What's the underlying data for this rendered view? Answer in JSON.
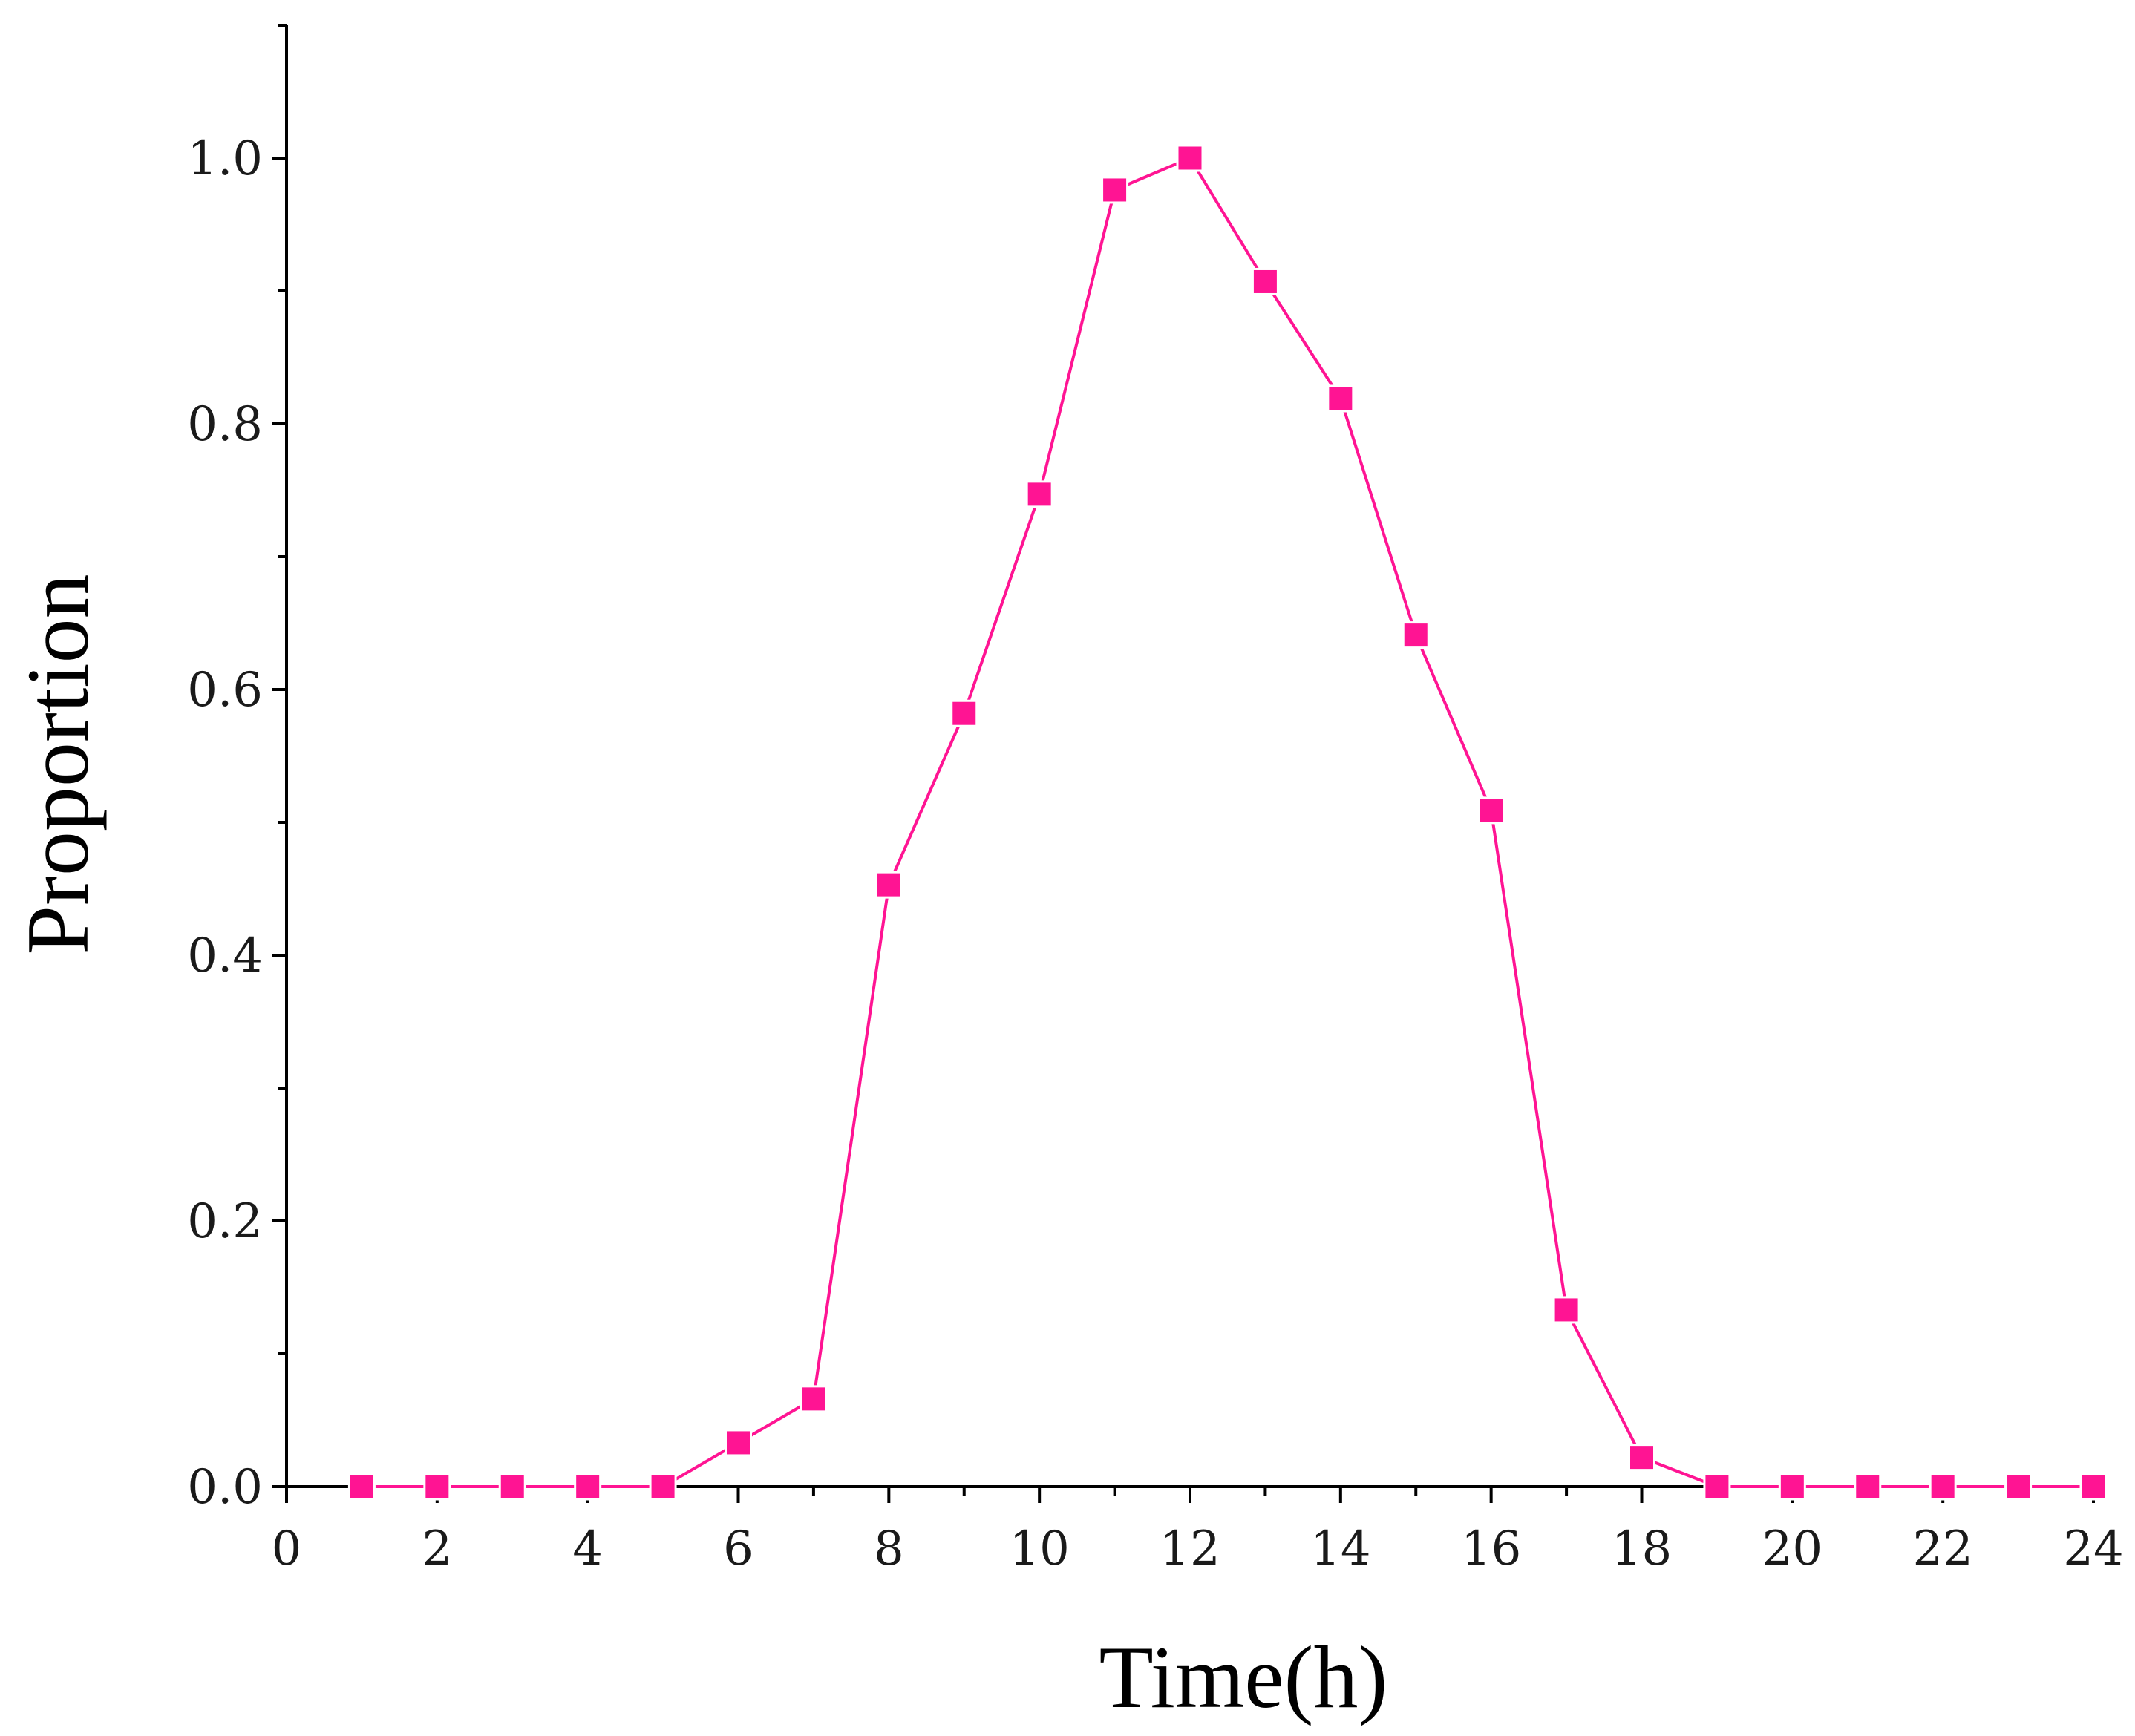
{
  "chart_data": {
    "type": "line",
    "title": "",
    "xlabel": "Time(h)",
    "ylabel": "Proportion",
    "xlim": [
      0,
      24
    ],
    "ylim": [
      0,
      1.1
    ],
    "x_ticks": [
      "0",
      "2",
      "4",
      "6",
      "8",
      "10",
      "12",
      "14",
      "16",
      "18",
      "20",
      "22",
      "24"
    ],
    "y_ticks": [
      "0.0",
      "0.2",
      "0.4",
      "0.6",
      "0.8",
      "1.0"
    ],
    "grid": false,
    "legend": "none",
    "series": [
      {
        "color": "#ff1493",
        "marker": "square",
        "x": [
          1,
          2,
          3,
          4,
          5,
          6,
          7,
          8,
          9,
          10,
          11,
          12,
          13,
          14,
          15,
          16,
          17,
          18,
          19,
          20,
          21,
          22,
          23,
          24
        ],
        "y": [
          0.0,
          0.0,
          0.0,
          0.0,
          0.0,
          0.033,
          0.066,
          0.453,
          0.582,
          0.747,
          0.976,
          1.0,
          0.907,
          0.819,
          0.641,
          0.509,
          0.133,
          0.022,
          0.0,
          0.0,
          0.0,
          0.0,
          0.0,
          0.0
        ]
      }
    ]
  }
}
